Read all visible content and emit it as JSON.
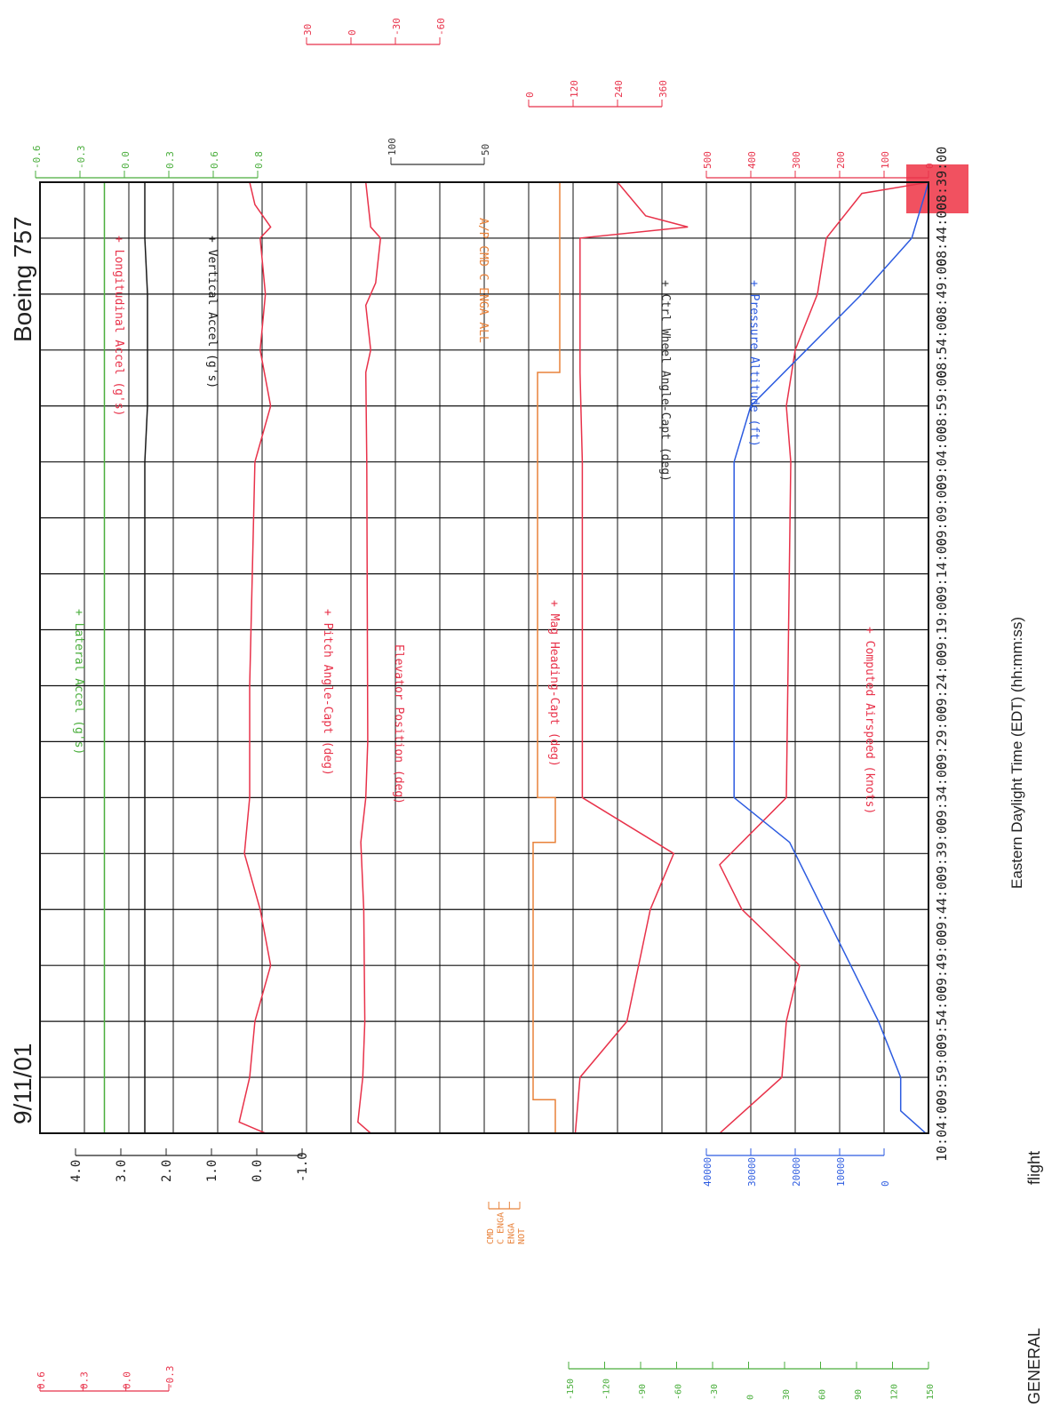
{
  "header": {
    "date": "9/11/01",
    "aircraft": "Boeing 757",
    "footer_left": "GENERAL",
    "footer_right": "flight"
  },
  "colors": {
    "red": "#e8324a",
    "green": "#4aae3c",
    "black": "#1a1a1a",
    "blue": "#2c5be0",
    "orange": "#e8823a",
    "grid": "#111111",
    "fill": "#ee3344"
  },
  "chart_data": {
    "type": "line",
    "xlabel": "Eastern Daylight Time (EDT) (hh:mm:ss)",
    "time_ticks": [
      "08:39:00",
      "08:44:00",
      "08:49:00",
      "08:54:00",
      "08:59:00",
      "09:04:00",
      "09:09:00",
      "09:14:00",
      "09:19:00",
      "09:24:00",
      "09:29:00",
      "09:34:00",
      "09:39:00",
      "09:44:00",
      "09:49:00",
      "09:54:00",
      "09:59:00",
      "10:04:00"
    ],
    "scales": {
      "accel": {
        "label": "",
        "ticks": [
          "4.0",
          "3.0",
          "2.0",
          "1.0",
          "0.0",
          "-1.0"
        ]
      },
      "lateral": {
        "label": "",
        "ticks": [
          "0.6",
          "0.3",
          "0.0",
          "-0.3"
        ]
      },
      "lateral_top": {
        "label": "",
        "ticks": [
          "-0.6",
          "-0.3",
          "0.0",
          "0.3",
          "0.6",
          "0.8"
        ]
      },
      "pitch": {
        "label": "",
        "ticks": [
          "30",
          "0",
          "-30",
          "-60"
        ]
      },
      "elevator": {
        "label": "",
        "ticks": [
          "100",
          "50"
        ]
      },
      "heading": {
        "label": "",
        "ticks": [
          "0",
          "120",
          "240",
          "360"
        ]
      },
      "airspeed": {
        "label": "",
        "ticks": [
          "500",
          "400",
          "300",
          "200",
          "100",
          "0"
        ]
      },
      "altitude": {
        "label": "",
        "ticks": [
          "40000",
          "30000",
          "20000",
          "10000",
          "0"
        ]
      },
      "wheel": {
        "label": "",
        "ticks": [
          "-150",
          "-120",
          "-90",
          "-60",
          "-30",
          "0",
          "30",
          "60",
          "90",
          "120",
          "150"
        ]
      },
      "ap": {
        "label": "",
        "ticks": [
          "CMD",
          "C ENGA",
          "ENGA",
          "NOT"
        ]
      }
    },
    "series": [
      {
        "name": "Lateral Accel (g's)",
        "axis": "lateral",
        "x": [
          "08:39:00",
          "08:44:00",
          "08:54:00",
          "09:04:00",
          "09:24:00",
          "09:34:00",
          "09:39:00",
          "09:44:00",
          "09:54:00",
          "09:59:00",
          "10:04:00"
        ],
        "y": [
          0.0,
          0.0,
          0.0,
          0.0,
          0.0,
          0.0,
          0.0,
          0.0,
          0.0,
          0.0,
          0.0
        ]
      },
      {
        "name": "Longitudinal Accel (g's)",
        "axis": "accel",
        "x": [
          "08:39:00",
          "08:41:00",
          "08:43:00",
          "08:44:00",
          "08:49:00",
          "08:54:00",
          "08:59:00",
          "09:04:00",
          "09:24:00",
          "09:34:00",
          "09:39:00",
          "09:44:00",
          "09:49:00",
          "09:54:00",
          "09:59:00",
          "10:03:00",
          "10:04:00"
        ],
        "y": [
          3.0,
          3.1,
          3.4,
          3.2,
          3.3,
          3.2,
          3.4,
          3.1,
          3.0,
          3.0,
          2.9,
          3.2,
          3.4,
          3.1,
          3.0,
          2.8,
          3.3
        ]
      },
      {
        "name": "Vertical Accel (g's)",
        "axis": "accel",
        "x": [
          "08:39:00",
          "08:43:00",
          "08:44:00",
          "08:49:00",
          "08:54:00",
          "08:59:00",
          "09:04:00",
          "09:29:00",
          "09:34:00",
          "09:39:00",
          "09:44:00",
          "09:49:00",
          "09:54:00",
          "09:59:00",
          "10:04:00"
        ],
        "y": [
          1.0,
          1.0,
          1.0,
          1.05,
          1.05,
          1.05,
          1.0,
          1.0,
          1.0,
          1.0,
          1.0,
          1.0,
          1.0,
          1.0,
          1.0
        ]
      },
      {
        "name": "Pitch Angle-Capt (deg)",
        "axis": "pitch",
        "x": [
          "08:39:00",
          "08:43:00",
          "08:44:00",
          "08:48:00",
          "08:50:00",
          "08:54:00",
          "08:56:00",
          "09:04:00",
          "09:29:00",
          "09:34:00",
          "09:38:00",
          "09:44:00",
          "09:54:00",
          "09:59:00",
          "10:03:00",
          "10:04:00"
        ],
        "y": [
          0,
          5,
          15,
          10,
          0,
          5,
          0,
          1,
          2,
          0,
          -5,
          -2,
          -1,
          -3,
          -8,
          5
        ]
      },
      {
        "name": "Magnetic Heading-Capt (deg)",
        "axis": "heading",
        "x": [
          "08:39:00",
          "08:42:00",
          "08:43:00",
          "08:44:00",
          "08:56:00",
          "09:04:00",
          "09:34:00",
          "09:39:00",
          "09:44:00",
          "09:54:00",
          "09:59:00",
          "10:04:00"
        ],
        "y": [
          180,
          240,
          330,
          100,
          100,
          105,
          105,
          300,
          250,
          200,
          100,
          90
        ]
      },
      {
        "name": "Computed Airspeed (knots)",
        "axis": "airspeed",
        "x": [
          "08:39:00",
          "08:40:00",
          "08:44:00",
          "08:49:00",
          "08:54:00",
          "08:59:00",
          "09:04:00",
          "09:34:00",
          "09:40:00",
          "09:44:00",
          "09:49:00",
          "09:54:00",
          "09:59:00",
          "10:04:00"
        ],
        "y": [
          0,
          150,
          230,
          250,
          300,
          320,
          310,
          320,
          470,
          420,
          290,
          320,
          330,
          470
        ]
      },
      {
        "name": "Pressure Altitude (ft)",
        "axis": "altitude",
        "x": [
          "08:39:00",
          "08:44:00",
          "08:49:00",
          "08:54:00",
          "08:59:00",
          "09:04:00",
          "09:09:00",
          "09:29:00",
          "09:34:00",
          "09:38:00",
          "09:44:00",
          "09:49:00",
          "09:54:00",
          "09:59:00",
          "10:02:00",
          "10:04:00"
        ],
        "y": [
          0,
          3000,
          12000,
          22000,
          32000,
          35000,
          35000,
          35000,
          35000,
          25000,
          19000,
          14000,
          9000,
          5000,
          5000,
          500
        ]
      }
    ],
    "annotations": [
      "+ Lateral Accel (g's)",
      "+ Longitudinal Accel (g's)",
      "+ Vertical Accel (g's)",
      "+ Pitch Angle-Capt (deg)",
      "Elevator Position (deg)",
      "A/P CMD C ENGA ALL",
      "+ Mag Heading-Capt (deg)",
      "+ Ctrl Wheel Angle-Capt (deg)",
      "+ Pressure Altitude (ft)",
      "+ Computed Airspeed (knots)"
    ]
  }
}
